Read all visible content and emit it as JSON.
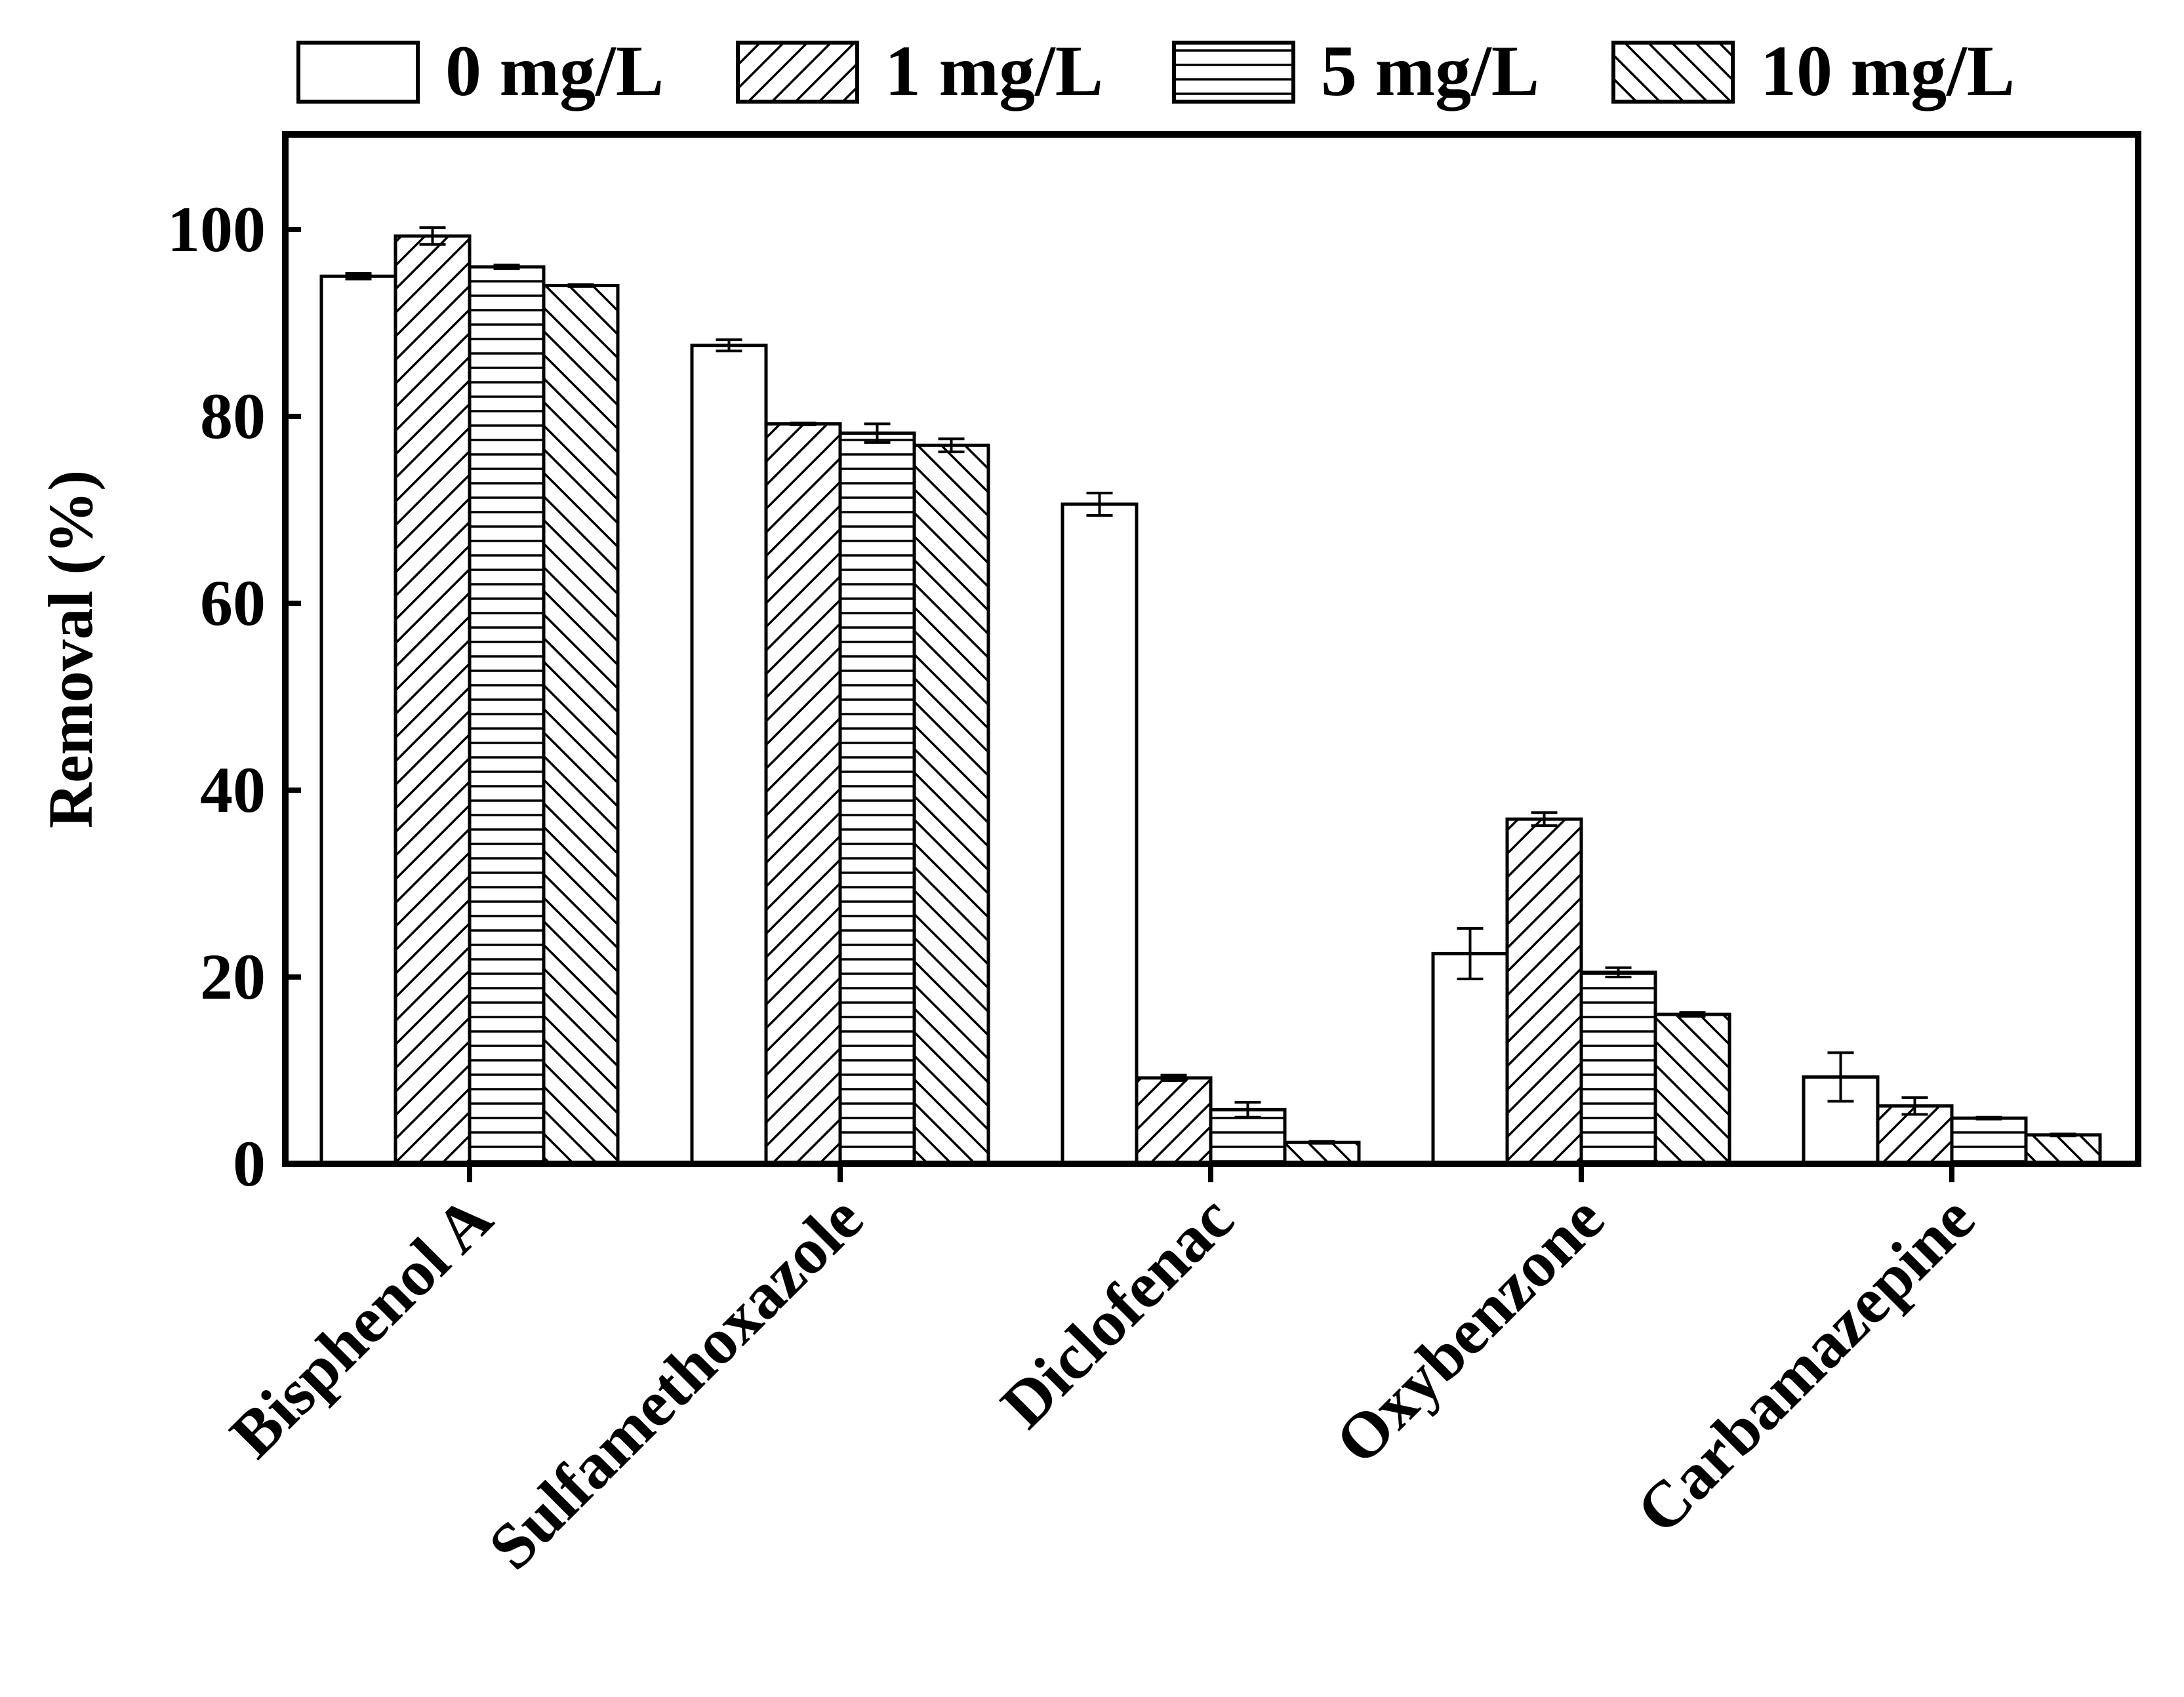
{
  "chart_data": {
    "type": "bar",
    "title": "",
    "xlabel": "",
    "ylabel": "Removal (%)",
    "ylim": [
      0,
      110
    ],
    "yticks": [
      0,
      20,
      40,
      60,
      80,
      100
    ],
    "yticks_labels": [
      "0",
      "20",
      "40",
      "60",
      "80",
      "100"
    ],
    "categories": [
      "Bisphenol A",
      "Sulfamethoxazole",
      "Diclofenac",
      "Oxybenzone",
      "Carbamazepine"
    ],
    "legend_position": "top",
    "series": [
      {
        "name": "0 mg/L",
        "pattern": "none",
        "values": [
          95.0,
          87.6,
          70.6,
          22.5,
          9.3
        ],
        "errors": [
          0.3,
          0.6,
          1.2,
          2.7,
          2.6
        ]
      },
      {
        "name": "1 mg/L",
        "pattern": "diagonal",
        "values": [
          99.3,
          79.2,
          9.2,
          36.9,
          6.2
        ],
        "errors": [
          0.9,
          0.1,
          0.3,
          0.7,
          0.9
        ]
      },
      {
        "name": "5 mg/L",
        "pattern": "horizontal",
        "values": [
          96.0,
          78.2,
          5.8,
          20.5,
          4.9
        ],
        "errors": [
          0.2,
          1.0,
          0.8,
          0.5,
          0.1
        ]
      },
      {
        "name": "10 mg/L",
        "pattern": "backslash",
        "values": [
          94.0,
          76.9,
          2.3,
          16.0,
          3.1
        ],
        "errors": [
          0.1,
          0.7,
          0.1,
          0.2,
          0.1
        ]
      }
    ],
    "colors": {
      "fill": "#ffffff",
      "stroke": "#000000"
    }
  }
}
